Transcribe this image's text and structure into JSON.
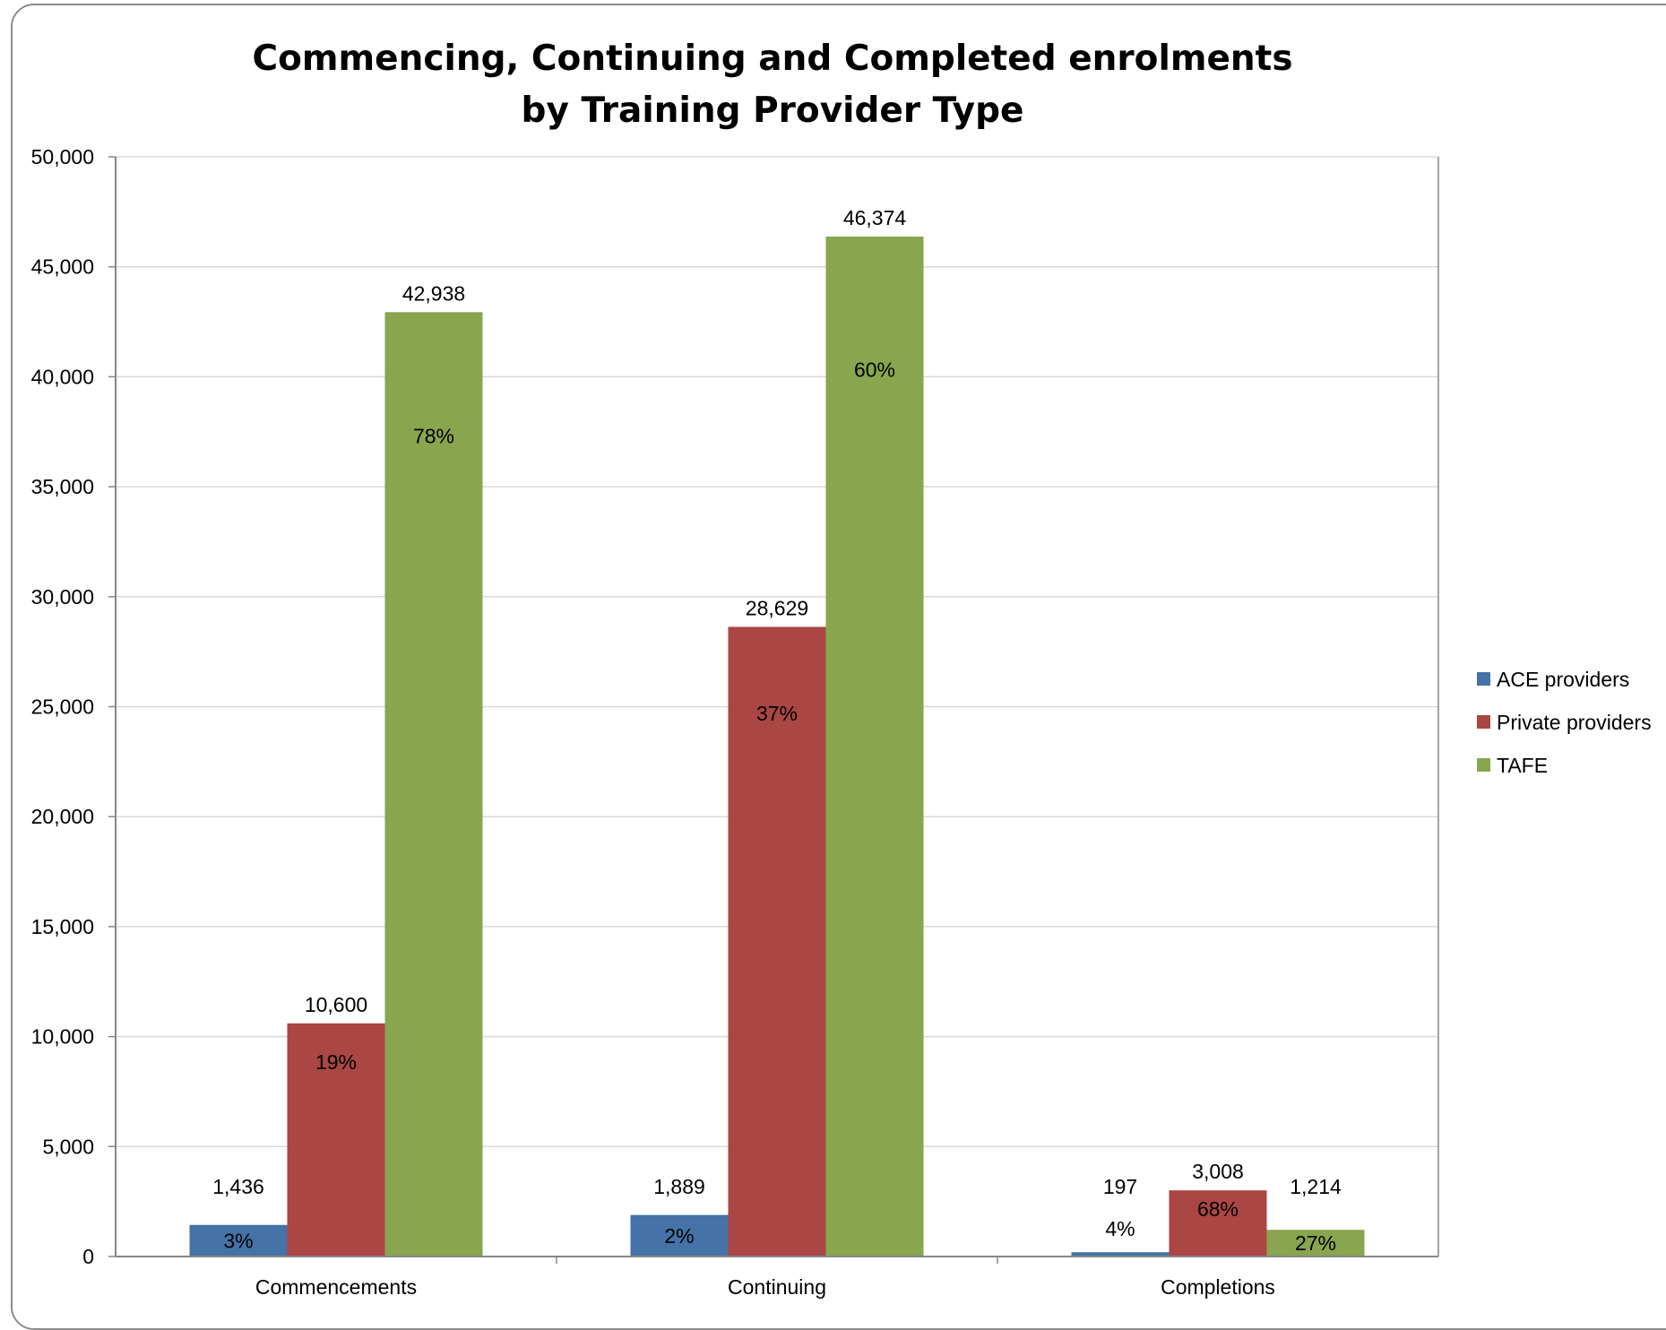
{
  "chart_data": {
    "type": "bar",
    "title_lines": [
      "Commencing, Continuing and Completed enrolments",
      "by Training Provider Type"
    ],
    "categories": [
      "Commencements",
      "Continuing",
      "Completions"
    ],
    "series": [
      {
        "name": "ACE providers",
        "color": "#4572a7",
        "values": [
          1436,
          1889,
          197
        ],
        "value_labels": [
          "1,436",
          "1,889",
          "197"
        ],
        "percent_labels": [
          "3%",
          "2%",
          "4%"
        ]
      },
      {
        "name": "Private providers",
        "color": "#aa4643",
        "values": [
          10600,
          28629,
          3008
        ],
        "value_labels": [
          "10,600",
          "28,629",
          "3,008"
        ],
        "percent_labels": [
          "19%",
          "37%",
          "68%"
        ]
      },
      {
        "name": "TAFE",
        "color": "#89a54e",
        "values": [
          42938,
          46374,
          1214
        ],
        "value_labels": [
          "42,938",
          "46,374",
          "1,214"
        ],
        "percent_labels": [
          "78%",
          "60%",
          "27%"
        ]
      }
    ],
    "ylim": [
      0,
      50000
    ],
    "yticks": [
      0,
      5000,
      10000,
      15000,
      20000,
      25000,
      30000,
      35000,
      40000,
      45000,
      50000
    ],
    "ytick_labels": [
      "0",
      "5,000",
      "10,000",
      "15,000",
      "20,000",
      "25,000",
      "30,000",
      "35,000",
      "40,000",
      "45,000",
      "50,000"
    ],
    "grid": true,
    "legend_position": "right",
    "gridline_color": "#d9d9d9"
  }
}
